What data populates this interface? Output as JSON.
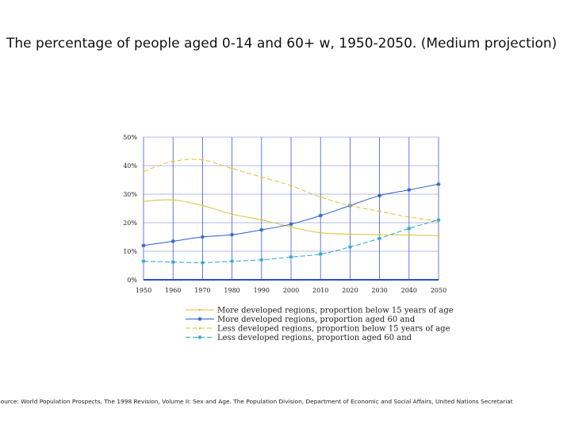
{
  "title": "The percentage of people aged 0-14 and 60+ w, 1950-2050. (Medium projection)",
  "source": "Source: World Population Prospects, The 1998 Revision, Volume II: Sex and Age. The Population Division, Department of Economic and Social Affairs, United Nations Secretariat",
  "colors": {
    "grid": "#3b5bd6",
    "axis": "#2a4fd0",
    "yellow": "#d8c23a",
    "blue": "#2b5fc8",
    "teal": "#2fa6c8"
  },
  "chart_data": {
    "type": "line",
    "title": "",
    "xlabel": "",
    "ylabel": "",
    "x": [
      1950,
      1960,
      1970,
      1980,
      1990,
      2000,
      2010,
      2020,
      2030,
      2040,
      2050
    ],
    "xticks": [
      "1950",
      "1960",
      "1970",
      "1980",
      "1990",
      "2000",
      "2010",
      "2020",
      "2030",
      "2040",
      "2050"
    ],
    "yticks": [
      "0%",
      "10%",
      "20%",
      "30%",
      "40%",
      "50%"
    ],
    "ylim": [
      0,
      50
    ],
    "grid": true,
    "legend_position": "bottom",
    "series": [
      {
        "name": "More developed regions, proportion below 15 years of age",
        "values": [
          27.5,
          28,
          26,
          23,
          21,
          18.5,
          16.5,
          16,
          15.8,
          15.7,
          15.5
        ],
        "color": "#d8c23a",
        "dash": "",
        "marker": "dot"
      },
      {
        "name": "More developed regions, proportion aged 60 and",
        "values": [
          12,
          13.5,
          15,
          15.8,
          17.5,
          19.5,
          22.5,
          26,
          29.5,
          31.5,
          33.5
        ],
        "color": "#2b5fc8",
        "dash": "",
        "marker": "star"
      },
      {
        "name": "Less developed regions, proportion below 15 years of age",
        "values": [
          38,
          41.5,
          42,
          39,
          36,
          33,
          29,
          26,
          24,
          22,
          20.5
        ],
        "color": "#d8c23a",
        "dash": "6,3",
        "marker": "dot"
      },
      {
        "name": "Less developed regions, proportion aged 60 and",
        "values": [
          6.5,
          6.2,
          6,
          6.5,
          7,
          8,
          9,
          11.5,
          14.5,
          18,
          21
        ],
        "color": "#2fa6c8",
        "dash": "6,3",
        "marker": "star"
      }
    ]
  }
}
